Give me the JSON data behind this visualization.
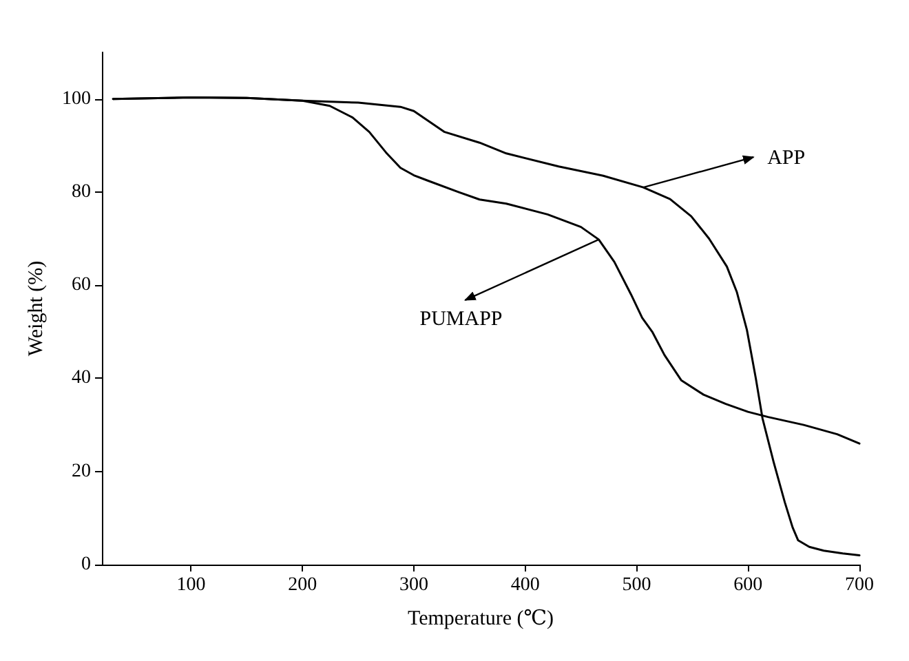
{
  "chart_data": {
    "type": "line",
    "xlabel": "Temperature (℃)",
    "ylabel": "Weight (%)",
    "xlim": [
      20,
      700
    ],
    "xticks": [
      100,
      200,
      300,
      400,
      500,
      600,
      700
    ],
    "ylim": [
      0,
      110
    ],
    "yticks": [
      0,
      20,
      40,
      60,
      80,
      100
    ],
    "grid": false,
    "marker": "none",
    "line_style": "solid",
    "series": [
      {
        "color": "#000000",
        "x": [
          30,
          100,
          150,
          200,
          250,
          288,
          300,
          327.6,
          359,
          383,
          430,
          470,
          506,
          530,
          549,
          565,
          581,
          590,
          599,
          607,
          613,
          623,
          633,
          640,
          645,
          655,
          668,
          685,
          700
        ],
        "values": [
          100,
          100.3,
          100.2,
          99.6,
          99.2,
          98.3,
          97.4,
          92.9,
          90.6,
          88.3,
          85.5,
          83.5,
          81,
          78.5,
          74.8,
          70,
          64,
          58.5,
          50.4,
          40,
          31.4,
          22,
          13.4,
          8,
          5.2,
          3.8,
          3,
          2.4,
          2
        ]
      },
      {
        "color": "#000000",
        "x": [
          30,
          100,
          150,
          200,
          224.5,
          245,
          260,
          275,
          288,
          300,
          312,
          340,
          359,
          383,
          420,
          450,
          466,
          480,
          495,
          505,
          514,
          525,
          540,
          560,
          580,
          600,
          618,
          650,
          680,
          700
        ],
        "values": [
          100,
          100.3,
          100.2,
          99.6,
          98.5,
          96,
          92.9,
          88.5,
          85.2,
          83.6,
          82.5,
          80,
          78.4,
          77.5,
          75.2,
          72.5,
          69.8,
          65,
          58,
          53,
          50,
          45,
          39.6,
          36.5,
          34.5,
          32.8,
          31.7,
          30,
          28,
          26
        ]
      }
    ],
    "annotations": [
      {
        "text": "APP",
        "x": 506,
        "y": 81
      },
      {
        "text": "PUMAPP",
        "x": 466,
        "y": 69.8
      }
    ]
  }
}
